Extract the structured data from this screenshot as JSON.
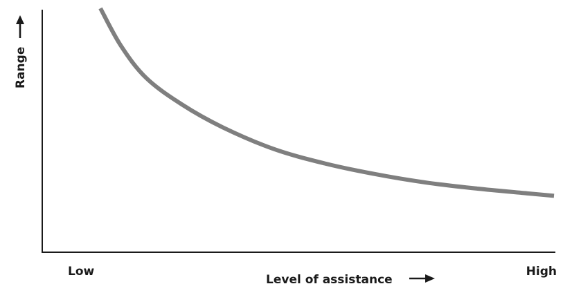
{
  "chart_data": {
    "type": "line",
    "title": "",
    "xlabel": "Level of assistance",
    "ylabel": "Range",
    "x_tick_labels": [
      "Low",
      "High"
    ],
    "xlim": [
      0,
      1
    ],
    "ylim": [
      0,
      1
    ],
    "grid": false,
    "legend": "none",
    "series": [
      {
        "x": [
          0.11,
          0.15,
          0.2,
          0.27,
          0.35,
          0.45,
          0.55,
          0.65,
          0.75,
          0.85,
          0.95,
          1.0
        ],
        "y": [
          1.0,
          0.845,
          0.71,
          0.6,
          0.505,
          0.415,
          0.355,
          0.31,
          0.275,
          0.25,
          0.23,
          0.22
        ],
        "color": "#7f7f7f"
      }
    ],
    "axis_color": "#1a1a1a"
  }
}
